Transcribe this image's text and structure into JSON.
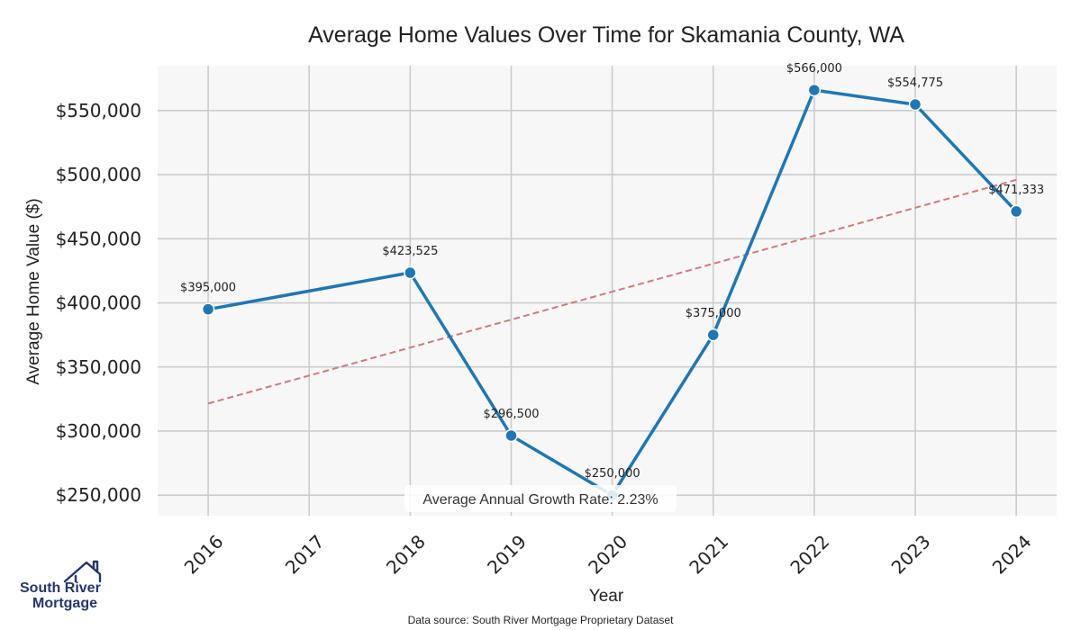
{
  "chart_data": {
    "type": "line",
    "title": "Average Home Values Over Time for Skamania County, WA",
    "xlabel": "Year",
    "ylabel": "Average Home Value ($)",
    "x": [
      "2016",
      "2018",
      "2019",
      "2020",
      "2021",
      "2022",
      "2023",
      "2024"
    ],
    "x_ticks": [
      "2016",
      "2017",
      "2018",
      "2019",
      "2020",
      "2021",
      "2022",
      "2023",
      "2024"
    ],
    "values": [
      395000,
      423525,
      296500,
      250000,
      375000,
      566000,
      554775,
      471333
    ],
    "value_labels": [
      "$395,000",
      "$423,525",
      "$296,500",
      "$250,000",
      "$375,000",
      "$566,000",
      "$554,775",
      "$471,333"
    ],
    "y_ticks": [
      250000,
      300000,
      350000,
      400000,
      450000,
      500000,
      550000
    ],
    "y_tick_labels": [
      "$250,000",
      "$300,000",
      "$350,000",
      "$400,000",
      "$450,000",
      "$500,000",
      "$550,000"
    ],
    "ylim": [
      234000,
      585000
    ],
    "xlim": [
      2015.5,
      2024.4
    ],
    "trend_line": {
      "x": [
        2016,
        2024
      ],
      "y": [
        321500,
        496000
      ],
      "style": "dashed",
      "color": "#d07a7a"
    },
    "series_color": "#1f77b4",
    "grid": true,
    "annotation": "Average Annual Growth Rate: 2.23%"
  },
  "footer": {
    "source": "Data source: South River Mortgage Proprietary Dataset"
  },
  "logo": {
    "line1": "South River",
    "line2": "Mortgage",
    "icon": "house-icon"
  }
}
